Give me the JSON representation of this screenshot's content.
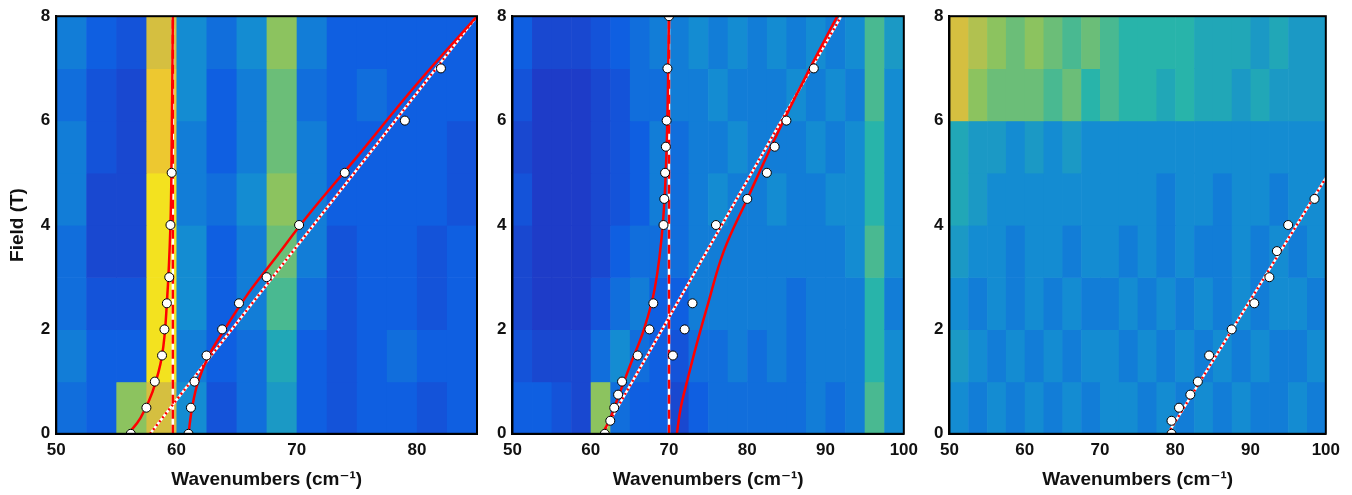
{
  "chart_data": [
    {
      "type": "heatmap",
      "x_label": "Wavenumbers (cm⁻¹)",
      "y_label": "Field (T)",
      "xlim": [
        50,
        85
      ],
      "ylim": [
        0,
        8
      ],
      "xticks": [
        50,
        60,
        70,
        80
      ],
      "yticks": [
        0,
        2,
        4,
        6,
        8
      ],
      "grid": false,
      "heatmap": {
        "x_edges": [
          50,
          52.5,
          55,
          57.5,
          60,
          62.5,
          65,
          67.5,
          70,
          72.5,
          75,
          77.5,
          80,
          82.5,
          85
        ],
        "y_edges": [
          0,
          1,
          2,
          3,
          4,
          5,
          6,
          7,
          8
        ],
        "cells": [
          [
            0.35,
            0.3,
            0.75,
            0.85,
            0.45,
            0.25,
            0.35,
            0.5,
            0.3,
            0.25,
            0.3,
            0.3,
            0.25,
            0.3
          ],
          [
            0.4,
            0.3,
            0.3,
            0.95,
            0.4,
            0.3,
            0.35,
            0.55,
            0.3,
            0.25,
            0.3,
            0.35,
            0.3,
            0.3
          ],
          [
            0.35,
            0.25,
            0.25,
            0.95,
            0.45,
            0.3,
            0.4,
            0.65,
            0.35,
            0.25,
            0.3,
            0.3,
            0.25,
            0.3
          ],
          [
            0.35,
            0.2,
            0.2,
            0.95,
            0.45,
            0.3,
            0.4,
            0.7,
            0.4,
            0.25,
            0.3,
            0.3,
            0.25,
            0.3
          ],
          [
            0.4,
            0.2,
            0.2,
            0.95,
            0.4,
            0.35,
            0.45,
            0.75,
            0.4,
            0.3,
            0.3,
            0.3,
            0.3,
            0.25
          ],
          [
            0.4,
            0.25,
            0.2,
            0.9,
            0.4,
            0.3,
            0.4,
            0.7,
            0.4,
            0.3,
            0.3,
            0.3,
            0.3,
            0.25
          ],
          [
            0.35,
            0.25,
            0.2,
            0.9,
            0.45,
            0.3,
            0.4,
            0.7,
            0.35,
            0.3,
            0.35,
            0.3,
            0.3,
            0.3
          ],
          [
            0.4,
            0.3,
            0.25,
            0.85,
            0.45,
            0.35,
            0.45,
            0.75,
            0.4,
            0.3,
            0.3,
            0.3,
            0.3,
            0.3
          ]
        ]
      },
      "series": [
        {
          "type": "line",
          "color": "#ff0000",
          "line_style": "dashed",
          "marker": "none",
          "x": [
            59.7,
            59.7
          ],
          "values": [
            0,
            8
          ]
        },
        {
          "type": "line",
          "color": "#ff0000",
          "line_style": "dotted",
          "marker": "none",
          "x": [
            57.8,
            85
          ],
          "values": [
            0,
            8
          ]
        },
        {
          "type": "line",
          "color": "#ff0000",
          "line_style": "solid",
          "marker": "none",
          "x": [
            56,
            57,
            58,
            58.8,
            59.2,
            59.5,
            59.6,
            59.7
          ],
          "values": [
            0,
            0.3,
            0.8,
            1.5,
            2.5,
            4,
            5.5,
            8
          ]
        },
        {
          "type": "line",
          "color": "#ff0000",
          "line_style": "solid",
          "marker": "none",
          "x": [
            61,
            61.3,
            61.8,
            62.7,
            64,
            66,
            68,
            71,
            75,
            80,
            85
          ],
          "values": [
            0,
            0.5,
            1,
            1.5,
            2,
            2.7,
            3.3,
            4.2,
            5.3,
            6.7,
            8
          ]
        },
        {
          "type": "scatter",
          "color": "#ffffff",
          "marker": "circle",
          "x": [
            56.2,
            57.5,
            58.2,
            58.8,
            59,
            59.2,
            59.4,
            59.5,
            59.6
          ],
          "values": [
            0,
            0.5,
            1,
            1.5,
            2,
            2.5,
            3,
            4,
            5
          ]
        },
        {
          "type": "scatter",
          "color": "#ffffff",
          "marker": "circle",
          "x": [
            61,
            61.2,
            61.5,
            62.5,
            63.8,
            65.2,
            67.5,
            70.2,
            74,
            79,
            82
          ],
          "values": [
            0,
            0.5,
            1,
            1.5,
            2,
            2.5,
            3,
            4,
            5,
            6,
            7
          ]
        }
      ]
    },
    {
      "type": "heatmap",
      "x_label": "Wavenumbers (cm⁻¹)",
      "xlim": [
        50,
        100
      ],
      "ylim": [
        0,
        8
      ],
      "xticks": [
        50,
        60,
        70,
        80,
        90,
        100
      ],
      "yticks": [
        0,
        2,
        4,
        6,
        8
      ],
      "grid": false,
      "heatmap": {
        "x_edges": [
          50,
          52.5,
          55,
          57.5,
          60,
          62.5,
          65,
          67.5,
          70,
          72.5,
          75,
          77.5,
          80,
          82.5,
          85,
          87.5,
          90,
          92.5,
          95,
          97.5,
          100
        ],
        "y_edges": [
          0,
          1,
          2,
          3,
          4,
          5,
          6,
          7,
          8
        ],
        "cells": [
          [
            0.3,
            0.3,
            0.25,
            0.2,
            0.75,
            0.35,
            0.3,
            0.3,
            0.2,
            0.3,
            0.35,
            0.35,
            0.35,
            0.35,
            0.35,
            0.4,
            0.35,
            0.4,
            0.65,
            0.45
          ],
          [
            0.25,
            0.2,
            0.2,
            0.2,
            0.35,
            0.45,
            0.35,
            0.3,
            0.25,
            0.35,
            0.35,
            0.4,
            0.35,
            0.4,
            0.35,
            0.4,
            0.4,
            0.4,
            0.6,
            0.45
          ],
          [
            0.2,
            0.15,
            0.15,
            0.15,
            0.25,
            0.35,
            0.4,
            0.3,
            0.3,
            0.4,
            0.4,
            0.4,
            0.4,
            0.4,
            0.35,
            0.4,
            0.4,
            0.4,
            0.6,
            0.4
          ],
          [
            0.2,
            0.15,
            0.15,
            0.15,
            0.2,
            0.3,
            0.35,
            0.35,
            0.35,
            0.4,
            0.4,
            0.4,
            0.4,
            0.4,
            0.4,
            0.4,
            0.4,
            0.45,
            0.65,
            0.45
          ],
          [
            0.25,
            0.15,
            0.15,
            0.15,
            0.2,
            0.25,
            0.3,
            0.4,
            0.35,
            0.4,
            0.45,
            0.4,
            0.4,
            0.45,
            0.4,
            0.4,
            0.45,
            0.45,
            0.6,
            0.45
          ],
          [
            0.2,
            0.15,
            0.15,
            0.15,
            0.2,
            0.25,
            0.3,
            0.4,
            0.35,
            0.4,
            0.4,
            0.45,
            0.4,
            0.4,
            0.4,
            0.45,
            0.4,
            0.45,
            0.6,
            0.45
          ],
          [
            0.25,
            0.15,
            0.15,
            0.15,
            0.2,
            0.25,
            0.35,
            0.35,
            0.4,
            0.4,
            0.45,
            0.4,
            0.4,
            0.4,
            0.45,
            0.4,
            0.45,
            0.4,
            0.65,
            0.45
          ],
          [
            0.3,
            0.2,
            0.2,
            0.2,
            0.25,
            0.3,
            0.35,
            0.4,
            0.4,
            0.45,
            0.4,
            0.45,
            0.4,
            0.45,
            0.4,
            0.45,
            0.4,
            0.45,
            0.65,
            0.5
          ]
        ]
      },
      "series": [
        {
          "type": "line",
          "color": "#ff0000",
          "line_style": "dashed",
          "marker": "none",
          "x": [
            70,
            70
          ],
          "values": [
            0,
            8
          ]
        },
        {
          "type": "line",
          "color": "#ff0000",
          "line_style": "dotted",
          "marker": "none",
          "x": [
            61.5,
            92
          ],
          "values": [
            0,
            8
          ]
        },
        {
          "type": "line",
          "color": "#ff0000",
          "line_style": "solid",
          "marker": "none",
          "x": [
            61.5,
            62.5,
            63.5,
            65,
            66.8,
            68.2,
            69.2,
            69.7,
            70
          ],
          "values": [
            0,
            0.3,
            0.7,
            1.3,
            2,
            2.8,
            4,
            5.5,
            8
          ]
        },
        {
          "type": "line",
          "color": "#ff0000",
          "line_style": "solid",
          "marker": "none",
          "x": [
            71,
            71.5,
            72.3,
            73.5,
            75,
            77,
            80,
            84,
            88,
            91.5
          ],
          "values": [
            0,
            0.5,
            1,
            1.7,
            2.5,
            3.5,
            4.5,
            5.8,
            7,
            8
          ]
        },
        {
          "type": "scatter",
          "color": "#ffffff",
          "marker": "circle",
          "x": [
            61.8,
            62.5,
            63,
            63.5,
            64,
            66,
            67.5,
            68,
            69.3,
            69.4,
            69.5,
            69.6,
            69.7,
            69.8,
            70
          ],
          "values": [
            0,
            0.25,
            0.5,
            0.75,
            1,
            1.5,
            2,
            2.5,
            4,
            4.5,
            5,
            5.5,
            6,
            7,
            8
          ]
        },
        {
          "type": "scatter",
          "color": "#ffffff",
          "marker": "circle",
          "x": [
            70.5,
            72,
            73,
            76,
            80,
            82.5,
            83.5,
            85,
            88.5
          ],
          "values": [
            1.5,
            2,
            2.5,
            4,
            4.5,
            5,
            5.5,
            6,
            7
          ]
        }
      ]
    },
    {
      "type": "heatmap",
      "x_label": "Wavenumbers (cm⁻¹)",
      "xlim": [
        50,
        100
      ],
      "ylim": [
        0,
        8
      ],
      "xticks": [
        50,
        60,
        70,
        80,
        90,
        100
      ],
      "yticks": [
        0,
        2,
        4,
        6,
        8
      ],
      "grid": false,
      "heatmap": {
        "x_edges": [
          50,
          52.5,
          55,
          57.5,
          60,
          62.5,
          65,
          67.5,
          70,
          72.5,
          75,
          77.5,
          80,
          82.5,
          85,
          87.5,
          90,
          92.5,
          95,
          97.5,
          100
        ],
        "y_edges": [
          0,
          1,
          2,
          3,
          4,
          5,
          6,
          7,
          8
        ],
        "cells": [
          [
            0.45,
            0.4,
            0.45,
            0.4,
            0.45,
            0.4,
            0.45,
            0.4,
            0.45,
            0.45,
            0.4,
            0.45,
            0.4,
            0.45,
            0.4,
            0.45,
            0.4,
            0.4,
            0.45,
            0.4
          ],
          [
            0.5,
            0.45,
            0.4,
            0.45,
            0.4,
            0.45,
            0.4,
            0.45,
            0.45,
            0.4,
            0.45,
            0.4,
            0.45,
            0.4,
            0.45,
            0.4,
            0.45,
            0.4,
            0.4,
            0.45
          ],
          [
            0.45,
            0.4,
            0.45,
            0.4,
            0.45,
            0.4,
            0.45,
            0.4,
            0.4,
            0.45,
            0.4,
            0.45,
            0.4,
            0.45,
            0.4,
            0.45,
            0.4,
            0.45,
            0.45,
            0.4
          ],
          [
            0.5,
            0.45,
            0.45,
            0.4,
            0.45,
            0.45,
            0.4,
            0.45,
            0.45,
            0.4,
            0.45,
            0.4,
            0.45,
            0.4,
            0.4,
            0.45,
            0.4,
            0.45,
            0.4,
            0.45
          ],
          [
            0.55,
            0.5,
            0.45,
            0.45,
            0.45,
            0.45,
            0.45,
            0.45,
            0.45,
            0.45,
            0.45,
            0.4,
            0.45,
            0.45,
            0.4,
            0.45,
            0.45,
            0.4,
            0.45,
            0.45
          ],
          [
            0.55,
            0.5,
            0.5,
            0.45,
            0.5,
            0.45,
            0.5,
            0.45,
            0.45,
            0.45,
            0.45,
            0.45,
            0.45,
            0.45,
            0.45,
            0.45,
            0.45,
            0.45,
            0.45,
            0.45
          ],
          [
            0.85,
            0.75,
            0.7,
            0.7,
            0.7,
            0.65,
            0.7,
            0.6,
            0.65,
            0.6,
            0.6,
            0.55,
            0.6,
            0.55,
            0.55,
            0.5,
            0.55,
            0.5,
            0.5,
            0.5
          ],
          [
            0.85,
            0.8,
            0.75,
            0.7,
            0.75,
            0.7,
            0.65,
            0.7,
            0.65,
            0.6,
            0.6,
            0.6,
            0.6,
            0.55,
            0.55,
            0.55,
            0.5,
            0.55,
            0.5,
            0.5
          ]
        ]
      },
      "series": [
        {
          "type": "line",
          "color": "#ff0000",
          "line_style": "dotted",
          "marker": "none",
          "x": [
            79,
            100
          ],
          "values": [
            0,
            4.9
          ]
        },
        {
          "type": "scatter",
          "color": "#ffffff",
          "marker": "circle",
          "x": [
            79.5,
            79.5,
            80.5,
            82,
            83,
            84.5,
            87.5,
            90.5,
            92.5,
            93.5,
            95,
            98.5
          ],
          "values": [
            0,
            0.25,
            0.5,
            0.75,
            1,
            1.5,
            2,
            2.5,
            3,
            3.5,
            4,
            4.5
          ]
        }
      ]
    }
  ]
}
